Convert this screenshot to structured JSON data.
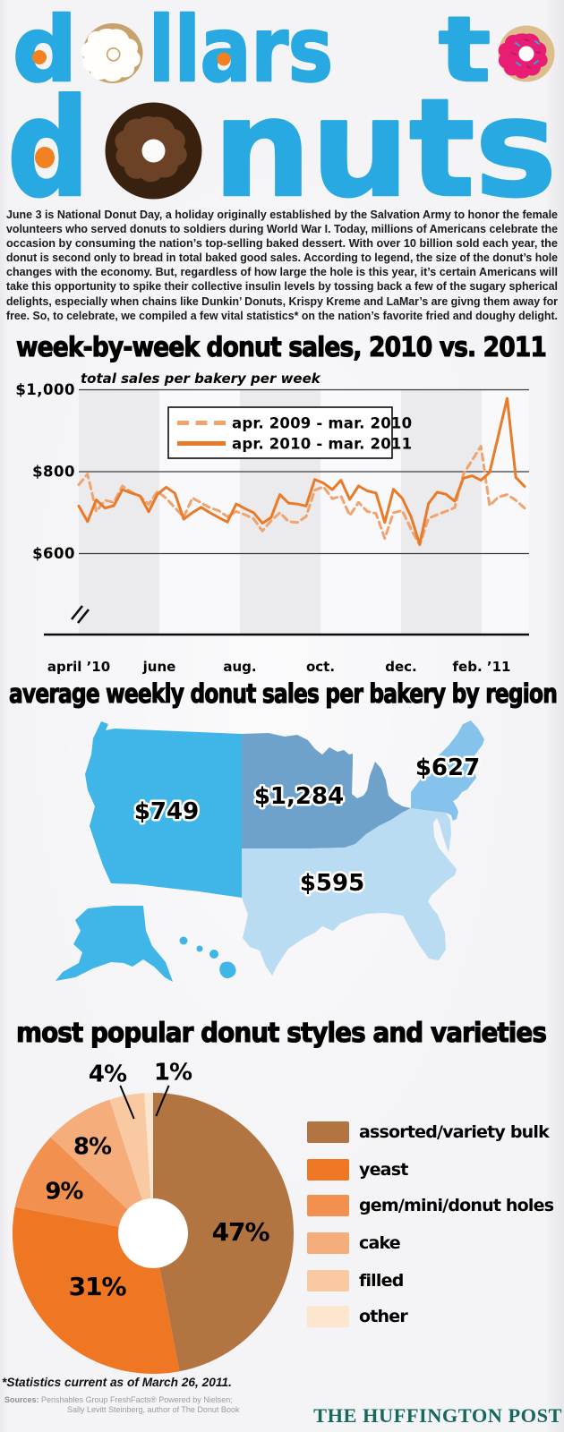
{
  "title": {
    "color": "#29a9e1",
    "word1_d": "d",
    "word1_rest": "llars",
    "word2_t": "t",
    "word3_d": "d",
    "word3_rest": "nuts",
    "donut_icons": [
      "glazed-donut",
      "pink-frosted-donut",
      "chocolate-donut"
    ]
  },
  "intro_lines": [
    "June 3 is National Donut Day, a holiday originally established by the Salvation Army to honor the female",
    "volunteers who served donuts to soldiers during World War I. Today, millions of Americans celebrate the",
    "occasion by consuming the nation’s top-selling baked dessert. With over 10 billion sold each year, the",
    "donut is second only to bread in total baked good sales. According to legend, the size of the donut’s hole",
    "changes with the economy. But, regardless of how large the hole is this year, it’s certain Americans will",
    "take this opportunity to spike their collective insulin levels by tossing back a few of the sugary spherical",
    "delights, especially when chains like Dunkin’ Donuts, Krispy Kreme and LaMar’s are givng them away for",
    "free. So, to celebrate, we compiled a few vital statistics* on the nation’s favorite fried and doughy delight."
  ],
  "sales_chart": {
    "heading": "week-by-week donut sales, 2010 vs. 2011",
    "axis_title": "total sales per bakery per week",
    "y_ticks": [
      "$1,000",
      "$800",
      "$600"
    ],
    "x_ticks": [
      "april ’10",
      "june",
      "aug.",
      "oct.",
      "dec.",
      "feb. ’11"
    ],
    "legend": [
      {
        "label": "apr. 2009 - mar. 2010",
        "style": "dashed"
      },
      {
        "label": "apr. 2010 - mar. 2011",
        "style": "solid"
      }
    ]
  },
  "map_section": {
    "heading": "average weekly donut sales per bakery by region",
    "regions": [
      {
        "name": "West",
        "value": "$749",
        "color": "#3fb5e8"
      },
      {
        "name": "Midwest",
        "value": "$1,284",
        "color": "#6fa2cb"
      },
      {
        "name": "Northeast",
        "value": "$627",
        "color": "#85c3ed"
      },
      {
        "name": "South",
        "value": "$595",
        "color": "#badcf3"
      }
    ]
  },
  "pie_section": {
    "heading": "most popular donut styles and varieties",
    "slices": [
      {
        "label": "assorted/variety bulk",
        "pct": "47%",
        "value": 47,
        "color": "#b27440"
      },
      {
        "label": "yeast",
        "pct": "31%",
        "value": 31,
        "color": "#ef7622"
      },
      {
        "label": "gem/mini/donut holes",
        "pct": "9%",
        "value": 9,
        "color": "#f2914f"
      },
      {
        "label": "cake",
        "pct": "8%",
        "value": 8,
        "color": "#f5ad7b"
      },
      {
        "label": "filled",
        "pct": "4%",
        "value": 4,
        "color": "#f9caa2"
      },
      {
        "label": "other",
        "pct": "1%",
        "value": 1,
        "color": "#fce6d0"
      }
    ]
  },
  "footer": {
    "note": "*Statistics current as of March 26, 2011.",
    "sources_label": "Sources:",
    "sources_line1": " Perishables Group FreshFacts® Powered by Nielsen;",
    "sources_line2": "Sally Levitt Steinberg, author of The Donut Book",
    "brand": "THE HUFFINGTON POST"
  },
  "chart_data": [
    {
      "type": "line",
      "title": "week-by-week donut sales, 2010 vs. 2011",
      "ylabel": "total sales per bakery per week",
      "xlabel": "",
      "x_tick_labels": [
        "april '10",
        "june",
        "aug.",
        "oct.",
        "dec.",
        "feb. '11"
      ],
      "y_gridlines": [
        1000,
        800,
        600
      ],
      "ylim": [
        400,
        1000
      ],
      "axis_break": true,
      "band_months_per_stripe": 2,
      "series": [
        {
          "name": "apr. 2009 - mar. 2010",
          "style": "dashed",
          "color": "#f0a36e",
          "values": [
            768,
            794,
            703,
            730,
            725,
            765,
            750,
            740,
            720,
            752,
            735,
            712,
            689,
            736,
            724,
            712,
            705,
            690,
            703,
            695,
            685,
            655,
            680,
            700,
            678,
            676,
            690,
            755,
            763,
            734,
            740,
            693,
            725,
            703,
            698,
            637,
            700,
            705,
            660,
            621,
            686,
            695,
            703,
            712,
            794,
            828,
            862,
            717,
            738,
            744,
            730,
            711
          ]
        },
        {
          "name": "apr. 2010 - mar. 2011",
          "style": "solid",
          "color": "#e87a28",
          "values": [
            716,
            678,
            731,
            711,
            717,
            756,
            748,
            741,
            702,
            745,
            762,
            747,
            684,
            700,
            713,
            700,
            688,
            677,
            721,
            710,
            700,
            674,
            688,
            744,
            723,
            721,
            716,
            781,
            772,
            756,
            779,
            732,
            765,
            753,
            748,
            676,
            757,
            735,
            690,
            623,
            722,
            750,
            745,
            728,
            784,
            790,
            779,
            798,
            888,
            979,
            786,
            764
          ]
        }
      ]
    },
    {
      "type": "table",
      "title": "average weekly donut sales per bakery by region",
      "columns": [
        "region",
        "avg_weekly_sales_usd"
      ],
      "rows": [
        [
          "West",
          749
        ],
        [
          "Midwest",
          1284
        ],
        [
          "Northeast",
          627
        ],
        [
          "South",
          595
        ]
      ]
    },
    {
      "type": "pie",
      "title": "most popular donut styles and varieties",
      "labels": [
        "assorted/variety bulk",
        "yeast",
        "gem/mini/donut holes",
        "cake",
        "filled",
        "other"
      ],
      "values": [
        47,
        31,
        9,
        8,
        4,
        1
      ],
      "start_angle_deg": 0,
      "direction": "clockwise",
      "donut_hole": true,
      "legend_position": "right"
    }
  ]
}
